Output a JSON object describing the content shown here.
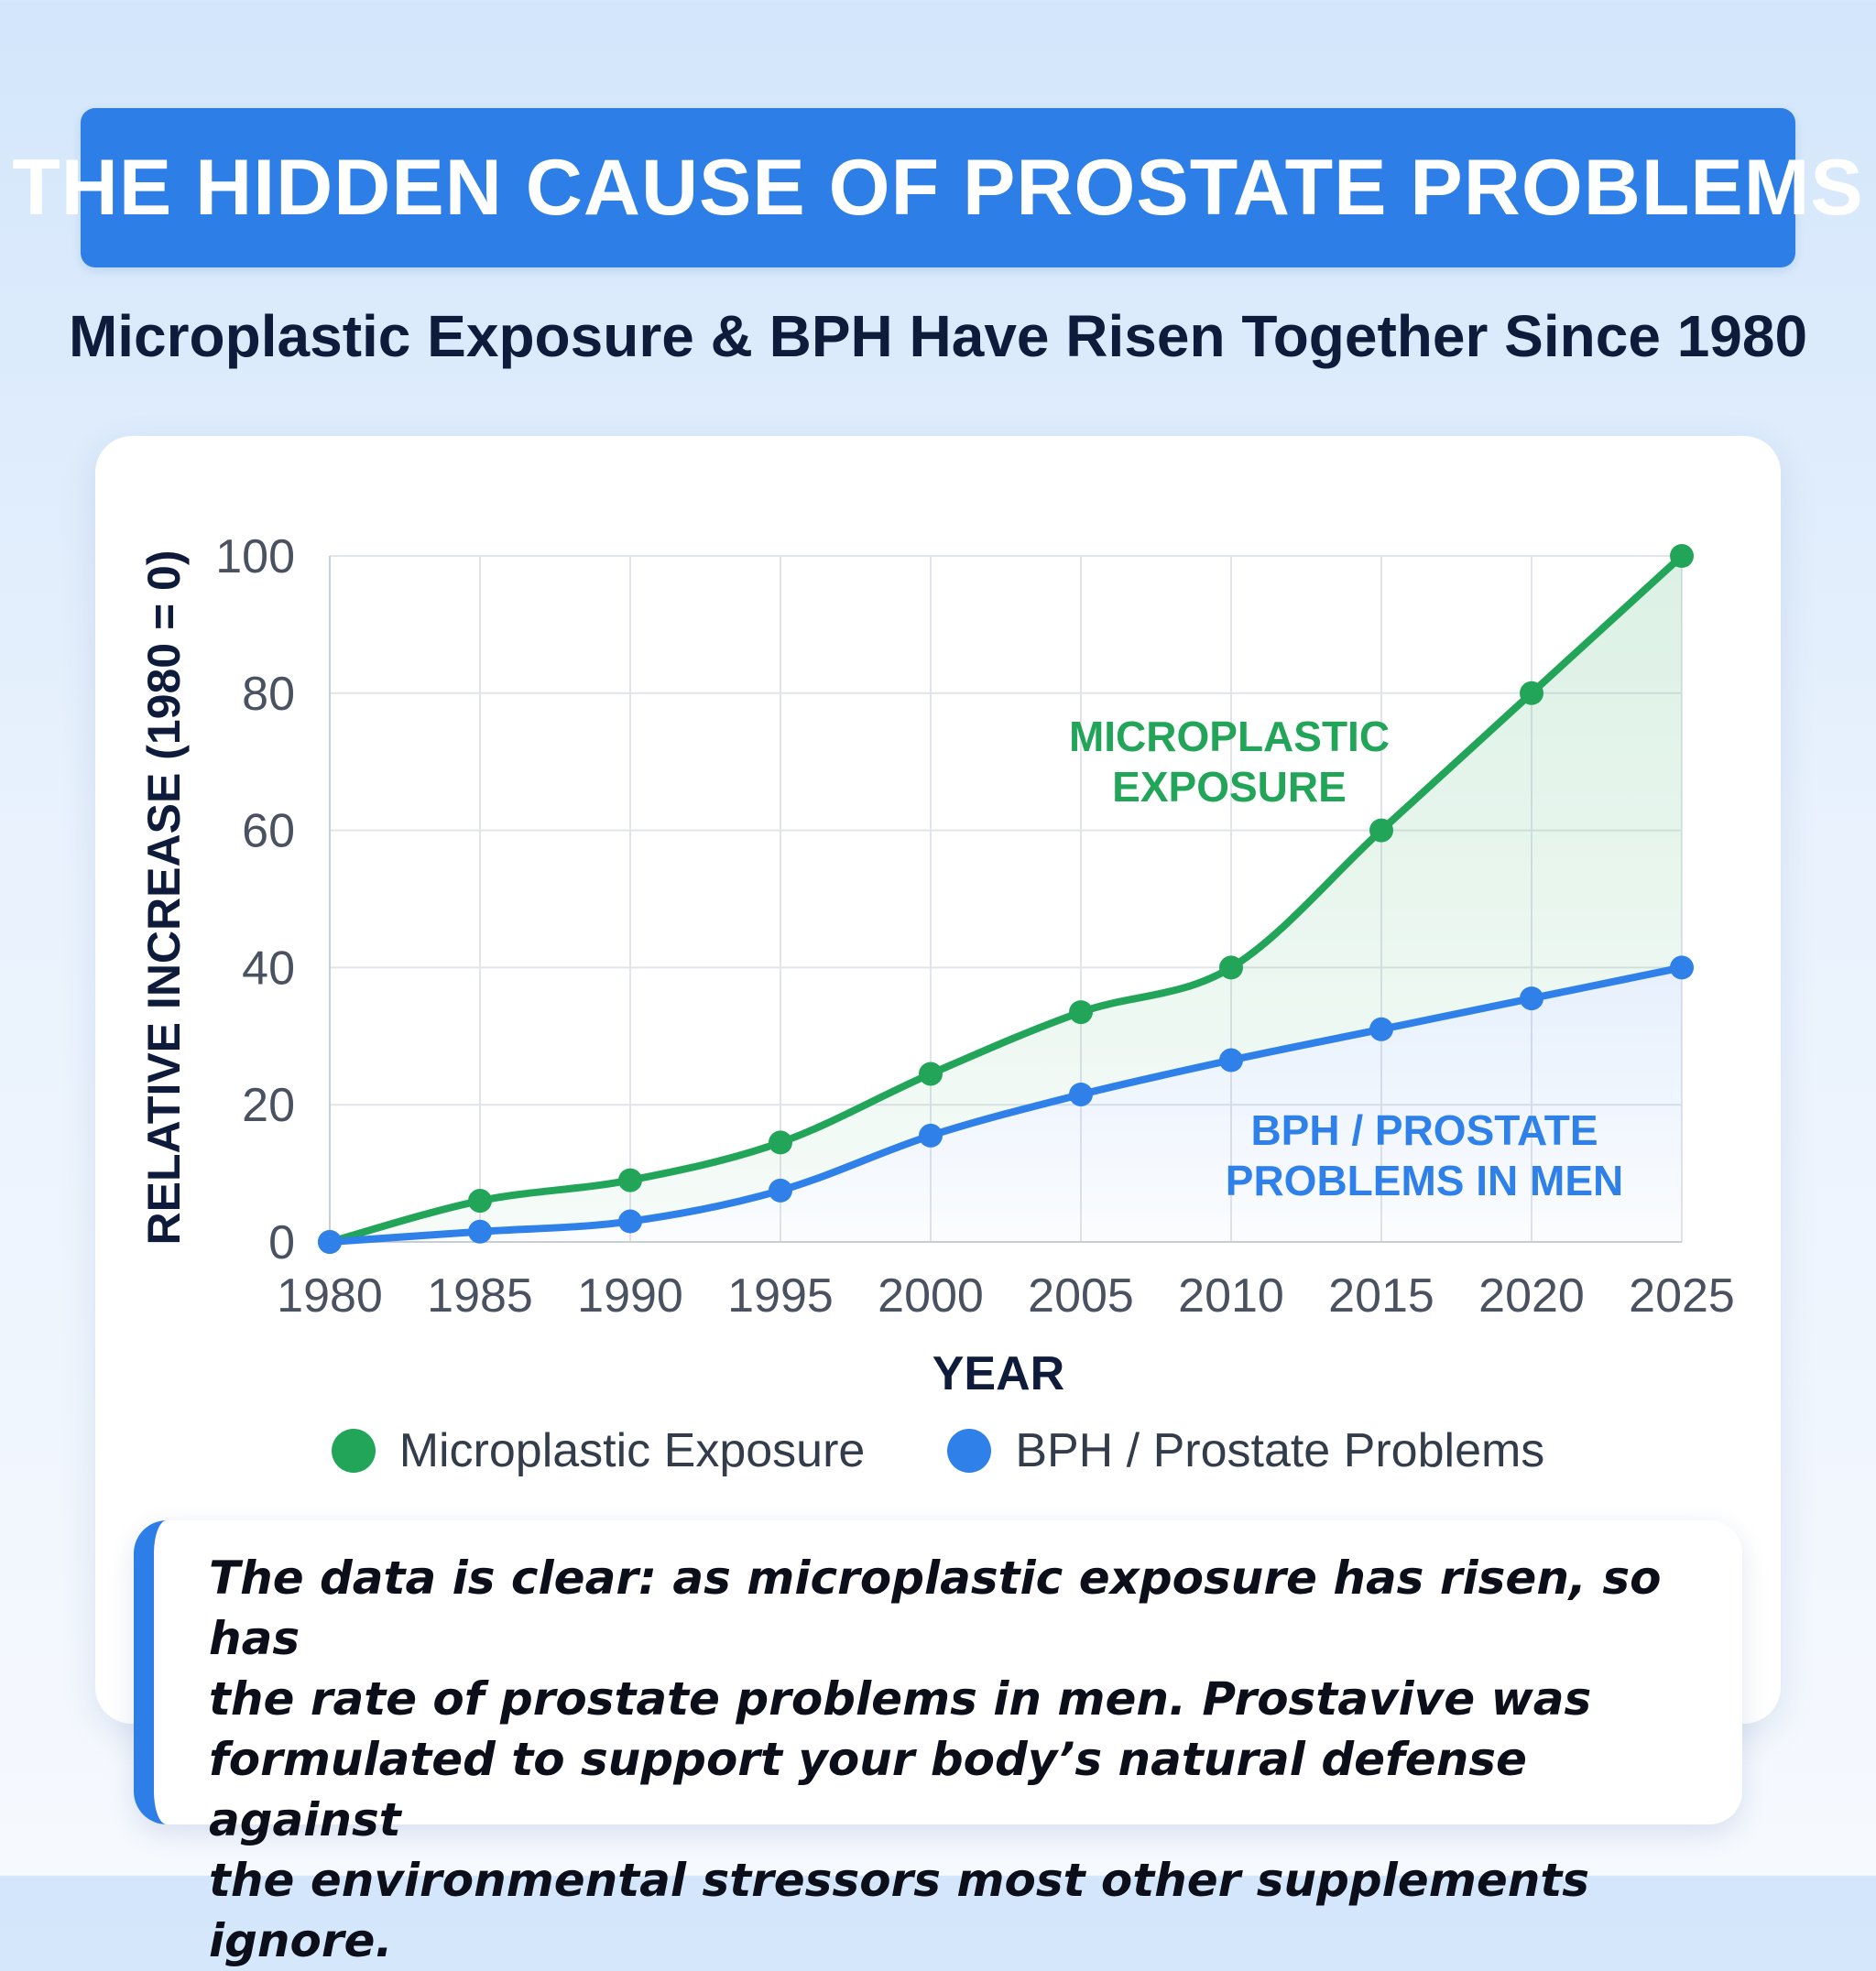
{
  "header": {
    "title": "THE HIDDEN CAUSE OF PROSTATE PROBLEMS",
    "subtitle": "Microplastic Exposure & BPH Have Risen Together Since 1980"
  },
  "chart_data": {
    "type": "line",
    "title": "THE HIDDEN CAUSE OF PROSTATE PROBLEMS",
    "subtitle": "Microplastic Exposure & BPH Have Risen Together Since 1980",
    "x": [
      1980,
      1985,
      1990,
      1995,
      2000,
      2005,
      2010,
      2015,
      2020,
      2025
    ],
    "xlabel": "YEAR",
    "ylabel": "RELATIVE INCREASE (1980 = 0)",
    "ylim": [
      0,
      100
    ],
    "yticks": [
      0,
      20,
      40,
      60,
      80,
      100
    ],
    "grid": true,
    "legend_position": "bottom",
    "series": [
      {
        "name": "Microplastic Exposure",
        "color": "#22a559",
        "values": [
          0,
          6,
          9,
          14.5,
          24.5,
          33.5,
          40,
          60,
          80,
          100
        ],
        "annotation": [
          "MICROPLASTIC",
          "EXPOSURE"
        ]
      },
      {
        "name": "BPH / Prostate Problems",
        "color": "#2f80e8",
        "values": [
          0,
          1.5,
          3,
          7.5,
          15.5,
          21.5,
          26.5,
          31,
          35.5,
          40
        ],
        "annotation": [
          "BPH / PROSTATE",
          "PROBLEMS IN MEN"
        ]
      }
    ]
  },
  "callout": {
    "lines": [
      "The data is clear: as microplastic exposure has risen, so has",
      "the rate of prostate problems in men. Prostavive was",
      "formulated to support your body’s natural defense against",
      "the environmental stressors most other supplements ignore."
    ]
  }
}
